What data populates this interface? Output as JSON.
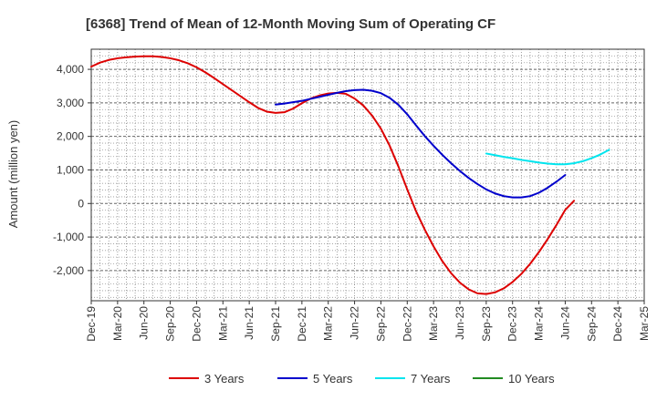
{
  "chart_data": {
    "type": "line",
    "title": "[6368]  Trend of Mean of 12-Month Moving Sum of Operating CF",
    "xlabel": "",
    "ylabel": "Amount (million yen)",
    "ylim": [
      -2900,
      4600
    ],
    "yticks": [
      4000,
      3000,
      2000,
      1000,
      0,
      -1000,
      -2000
    ],
    "ytick_labels": [
      "4,000",
      "3,000",
      "2,000",
      "1,000",
      "0",
      "-1,000",
      "-2,000"
    ],
    "x_labels": [
      "Dec-19",
      "Mar-20",
      "Jun-20",
      "Sep-20",
      "Dec-20",
      "Mar-21",
      "Jun-21",
      "Sep-21",
      "Dec-21",
      "Mar-22",
      "Jun-22",
      "Sep-22",
      "Dec-22",
      "Mar-23",
      "Jun-23",
      "Sep-23",
      "Dec-23",
      "Mar-24",
      "Jun-24",
      "Sep-24",
      "Dec-24",
      "Mar-25"
    ],
    "grid": true,
    "legend_position": "bottom",
    "series": [
      {
        "name": "3 Years",
        "color": "#dd0000",
        "start_index": 0,
        "values": [
          4080,
          4200,
          4280,
          4330,
          4360,
          4380,
          4390,
          4390,
          4370,
          4330,
          4270,
          4180,
          4060,
          3910,
          3740,
          3560,
          3380,
          3200,
          3020,
          2850,
          2740,
          2700,
          2720,
          2830,
          2990,
          3130,
          3220,
          3280,
          3300,
          3270,
          3130,
          2920,
          2620,
          2230,
          1720,
          1100,
          420,
          -230,
          -780,
          -1280,
          -1720,
          -2080,
          -2360,
          -2560,
          -2680,
          -2700,
          -2650,
          -2530,
          -2340,
          -2100,
          -1800,
          -1450,
          -1060,
          -640,
          -190,
          80
        ]
      },
      {
        "name": "5 Years",
        "color": "#0000cc",
        "start_index": 21,
        "values": [
          2950,
          2980,
          3020,
          3060,
          3120,
          3180,
          3240,
          3300,
          3350,
          3380,
          3390,
          3360,
          3290,
          3150,
          2940,
          2660,
          2330,
          2010,
          1720,
          1450,
          1200,
          970,
          760,
          580,
          420,
          300,
          220,
          180,
          180,
          220,
          320,
          470,
          650,
          850
        ]
      },
      {
        "name": "7 Years",
        "color": "#00e5ee",
        "start_index": 45,
        "values": [
          1490,
          1440,
          1390,
          1350,
          1300,
          1260,
          1220,
          1190,
          1170,
          1170,
          1200,
          1260,
          1350,
          1460,
          1600
        ]
      },
      {
        "name": "10 Years",
        "color": "#228b22",
        "start_index": 0,
        "values": []
      }
    ]
  }
}
